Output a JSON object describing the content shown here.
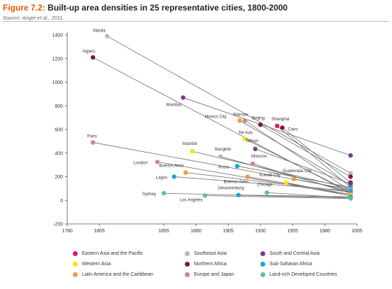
{
  "header": {
    "figure_label": "Figure 7.2:",
    "title": "Built-up area densities in 25 representative cities, 1800-2000",
    "source": "Source: Angel et al., 2011."
  },
  "colors": {
    "eastern_asia": "#e0157a",
    "southeast_asia": "#b8b8b8",
    "south_central_asia": "#7b3a8c",
    "western_asia": "#f7e400",
    "northern_africa": "#8c1433",
    "sub_saharan_africa": "#1aa3d8",
    "latin_america": "#f39a3c",
    "europe_japan": "#c48a8a",
    "land_rich": "#5ac2a0"
  },
  "chart_data": {
    "type": "scatter",
    "title": "Built-up area densities in 25 representative cities, 1800-2000",
    "xlabel": "",
    "ylabel": "",
    "xlim": [
      1780,
      2005
    ],
    "ylim": [
      -200,
      1400
    ],
    "x_ticks": [
      "1780",
      "1805",
      "1855",
      "1880",
      "1905",
      "1930",
      "1955",
      "1980",
      "2005"
    ],
    "y_ticks": [
      "-200",
      "0",
      "200",
      "400",
      "600",
      "800",
      "1000",
      "1200",
      "1400"
    ],
    "grid": false,
    "legend_position": "bottom",
    "categories": [
      {
        "key": "eastern_asia",
        "name": "Eastern Asia and the Pacific"
      },
      {
        "key": "southeast_asia",
        "name": "Southeast Asia"
      },
      {
        "key": "south_central_asia",
        "name": "South and Central Asia"
      },
      {
        "key": "western_asia",
        "name": "Western Asia"
      },
      {
        "key": "northern_africa",
        "name": "Northern Africa"
      },
      {
        "key": "sub_saharan_africa",
        "name": "Sub-Saharan Africa"
      },
      {
        "key": "latin_america",
        "name": "Latin America and the Caribbean"
      },
      {
        "key": "europe_japan",
        "name": "Europe and Japan"
      },
      {
        "key": "land_rich",
        "name": "Land-rich Developed Countries"
      }
    ],
    "cities": [
      {
        "name": "Manila",
        "category": "southeast_asia",
        "x1": 1811,
        "y1": 1390,
        "x2": 2000,
        "y2": 230
      },
      {
        "name": "Algiers",
        "category": "northern_africa",
        "x1": 1800,
        "y1": 1210,
        "x2": 2000,
        "y2": 60
      },
      {
        "name": "Mumbai",
        "category": "south_central_asia",
        "x1": 1870,
        "y1": 870,
        "x2": 2000,
        "y2": 380
      },
      {
        "name": "Warsaw",
        "category": "europe_japan",
        "x1": 1918,
        "y1": 675,
        "x2": 2000,
        "y2": 80
      },
      {
        "name": "Mexico City",
        "category": "latin_america",
        "x1": 1914,
        "y1": 675,
        "x2": 2000,
        "y2": 130
      },
      {
        "name": "Beijing",
        "category": "northern_africa",
        "x1": 1930,
        "y1": 640,
        "x2": 2000,
        "y2": 200
      },
      {
        "name": "Shanghai",
        "category": "eastern_asia",
        "x1": 1943,
        "y1": 630,
        "x2": 2000,
        "y2": 110
      },
      {
        "name": "Cairo",
        "category": "northern_africa",
        "x1": 1947,
        "y1": 615,
        "x2": 2000,
        "y2": 150
      },
      {
        "name": "Tel Aviv",
        "category": "western_asia",
        "x1": 1918,
        "y1": 520,
        "x2": 2000,
        "y2": 70
      },
      {
        "name": "Paris",
        "category": "europe_japan",
        "x1": 1800,
        "y1": 490,
        "x2": 2000,
        "y2": 90
      },
      {
        "name": "Tehran",
        "category": "south_central_asia",
        "x1": 1926,
        "y1": 435,
        "x2": 2000,
        "y2": 140
      },
      {
        "name": "Istanbul",
        "category": "western_asia",
        "x1": 1877,
        "y1": 415,
        "x2": 2000,
        "y2": 100
      },
      {
        "name": "Bangkok",
        "category": "southeast_asia",
        "x1": 1899,
        "y1": 370,
        "x2": 2000,
        "y2": 70
      },
      {
        "name": "London",
        "category": "europe_japan",
        "x1": 1850,
        "y1": 325,
        "x2": 2000,
        "y2": 40
      },
      {
        "name": "Moscow",
        "category": "europe_japan",
        "x1": 1924,
        "y1": 310,
        "x2": 2000,
        "y2": 60
      },
      {
        "name": "Accra",
        "category": "sub_saharan_africa",
        "x1": 1912,
        "y1": 290,
        "x2": 2000,
        "y2": 110
      },
      {
        "name": "Buenos Aires",
        "category": "latin_america",
        "x1": 1872,
        "y1": 235,
        "x2": 2000,
        "y2": 70
      },
      {
        "name": "Guatemala City",
        "category": "latin_america",
        "x1": 1956,
        "y1": 180,
        "x2": 2000,
        "y2": 90
      },
      {
        "name": "Lagos",
        "category": "sub_saharan_africa",
        "x1": 1863,
        "y1": 200,
        "x2": 2000,
        "y2": 80
      },
      {
        "name": "Buenos Aires",
        "category": "latin_america",
        "x1": 1920,
        "y1": 200,
        "x2": 2000,
        "y2": 50
      },
      {
        "name": "Kuwait City",
        "category": "western_asia",
        "x1": 1950,
        "y1": 150,
        "x2": 2000,
        "y2": 40
      },
      {
        "name": "Chicago",
        "category": "land_rich",
        "x1": 1935,
        "y1": 65,
        "x2": 2000,
        "y2": 20
      },
      {
        "name": "Sydney",
        "category": "land_rich",
        "x1": 1855,
        "y1": 60,
        "x2": 2000,
        "y2": 20
      },
      {
        "name": "Johannesburg",
        "category": "sub_saharan_africa",
        "x1": 1913,
        "y1": 45,
        "x2": 2000,
        "y2": 30
      },
      {
        "name": "Los Angeles",
        "category": "land_rich",
        "x1": 1887,
        "y1": 40,
        "x2": 2000,
        "y2": 15
      }
    ]
  }
}
